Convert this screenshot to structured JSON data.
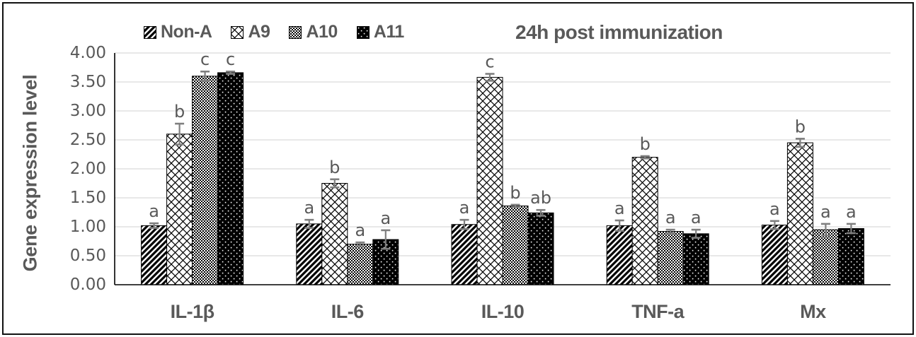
{
  "figure": {
    "title": "24h post immunization",
    "y_axis_title": "Gene expression level"
  },
  "legend": {
    "items": [
      {
        "label": "Non-A",
        "pattern": "diagonal-stripes"
      },
      {
        "label": "A9",
        "pattern": "diamond-crosshatch"
      },
      {
        "label": "A10",
        "pattern": "fine-checker"
      },
      {
        "label": "A11",
        "pattern": "dotted-black"
      }
    ]
  },
  "style": {
    "text_color": "#595959",
    "gridline_color": "#d9d9d9",
    "axis_color": "#000000",
    "error_bar_color": "#7f7f7f",
    "bar_outline": "#000000",
    "background": "#ffffff"
  },
  "chart_data": {
    "type": "bar",
    "title": "24h post immunization",
    "ylabel": "Gene expression level",
    "xlabel": "",
    "ylim": [
      0,
      4
    ],
    "ytick_step": 0.5,
    "ytick_labels": [
      "0.00",
      "0.50",
      "1.00",
      "1.50",
      "2.00",
      "2.50",
      "3.00",
      "3.50",
      "4.00"
    ],
    "grid": true,
    "legend_position": "top",
    "categories": [
      "IL-1β",
      "IL-6",
      "IL-10",
      "TNF-a",
      "Mx"
    ],
    "series": [
      {
        "name": "Non-A",
        "pattern": "diagonal-stripes",
        "values": [
          1.02,
          1.05,
          1.04,
          1.02,
          1.03
        ],
        "errors": [
          0.04,
          0.07,
          0.08,
          0.09,
          0.07
        ],
        "letters": [
          "a",
          "a",
          "a",
          "a",
          "a"
        ]
      },
      {
        "name": "A9",
        "pattern": "diamond-crosshatch",
        "values": [
          2.6,
          1.75,
          3.58,
          2.2,
          2.45
        ],
        "errors": [
          0.18,
          0.07,
          0.06,
          0.02,
          0.07
        ],
        "letters": [
          "b",
          "b",
          "c",
          "b",
          "b"
        ]
      },
      {
        "name": "A10",
        "pattern": "fine-checker",
        "values": [
          3.6,
          0.7,
          1.36,
          0.92,
          0.95
        ],
        "errors": [
          0.08,
          0.03,
          0.02,
          0.03,
          0.1
        ],
        "letters": [
          "c",
          "a",
          "b",
          "a",
          "a"
        ]
      },
      {
        "name": "A11",
        "pattern": "dotted-black",
        "values": [
          3.66,
          0.78,
          1.24,
          0.88,
          0.97
        ],
        "errors": [
          0.02,
          0.16,
          0.05,
          0.07,
          0.08
        ],
        "letters": [
          "c",
          "a",
          "ab",
          "a",
          "a"
        ]
      }
    ]
  }
}
